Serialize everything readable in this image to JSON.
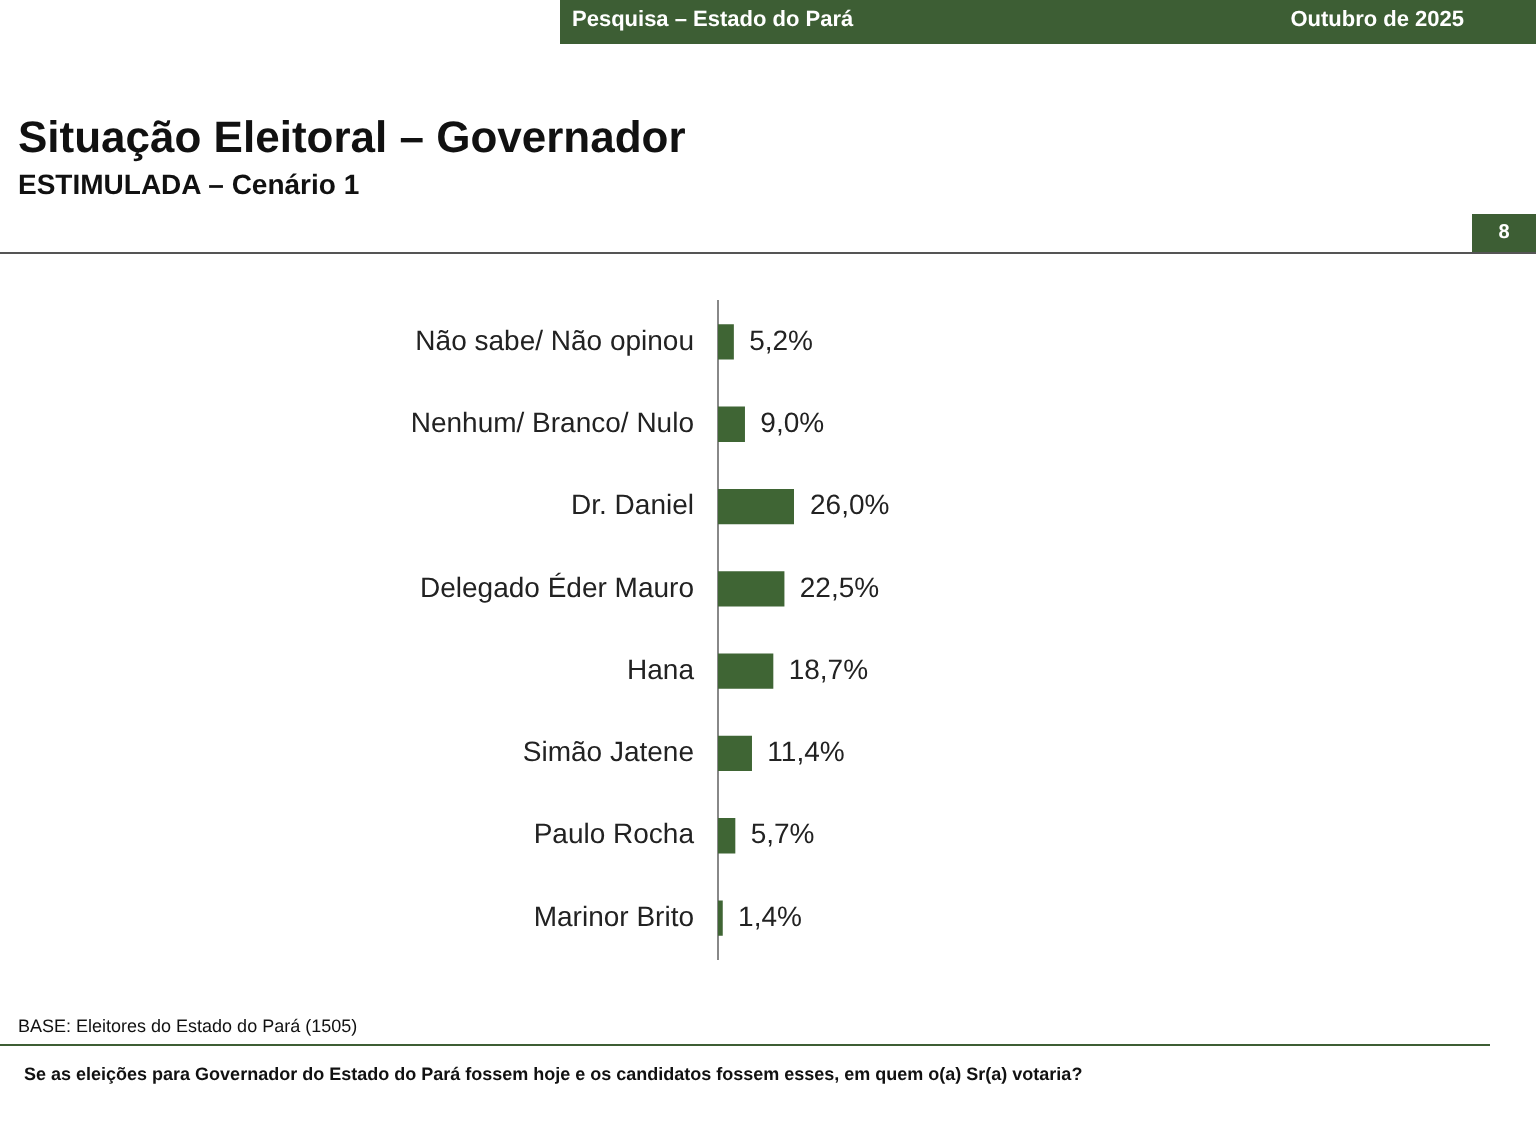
{
  "chart_data": {
    "type": "bar",
    "orientation": "horizontal",
    "title": "Situação Eleitoral – Governador",
    "subtitle": "ESTIMULADA – Cenário 1",
    "categories": [
      "Não sabe/ Não opinou",
      "Nenhum/ Branco/ Nulo",
      "Dr. Daniel",
      "Delegado Éder Mauro",
      "Hana",
      "Simão Jatene",
      "Paulo Rocha",
      "Marinor Brito"
    ],
    "values": [
      5.2,
      9.0,
      26.0,
      22.5,
      18.7,
      11.4,
      5.7,
      1.4
    ],
    "value_labels": [
      "5,2%",
      "9,0%",
      "26,0%",
      "22,5%",
      "18,7%",
      "11,4%",
      "5,7%",
      "1,4%"
    ],
    "color": "#3f6534",
    "legend": false,
    "tick_labels": "y",
    "annotations": [
      "Pesquisa – Estado do Pará",
      "Outubro de 2025",
      "8",
      "BASE: Eleitores do Estado do Pará (1505)",
      "Se as eleições para Governador do Estado do Pará fossem hoje e os candidatos fossem esses, em quem o(a) Sr(a) votaria?"
    ]
  }
}
